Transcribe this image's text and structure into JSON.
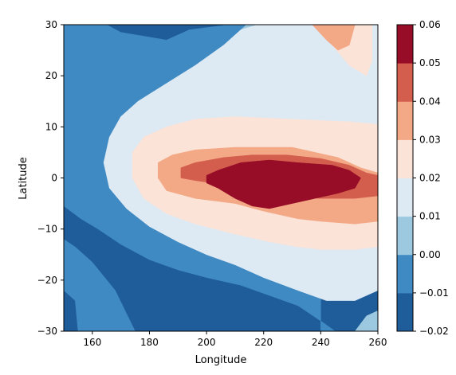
{
  "chart_data": {
    "type": "contourf",
    "title": "",
    "xlabel": "Longitude",
    "ylabel": "Latitude",
    "xlim": [
      150,
      260
    ],
    "ylim": [
      -30,
      30
    ],
    "xticks": [
      160,
      180,
      200,
      220,
      240,
      260
    ],
    "yticks": [
      -30,
      -20,
      -10,
      0,
      10,
      20,
      30
    ],
    "colorbar": {
      "levels": [
        -0.02,
        -0.01,
        0.0,
        0.01,
        0.02,
        0.03,
        0.04,
        0.05,
        0.06
      ],
      "tick_labels": [
        "−0.02",
        "−0.01",
        "0.00",
        "0.01",
        "0.02",
        "0.03",
        "0.04",
        "0.05",
        "0.06"
      ],
      "colors": [
        "#1f5c9a",
        "#3f8ac3",
        "#9cc8e0",
        "#dde9f3",
        "#fbe3d8",
        "#f4a986",
        "#d45e4e",
        "#970c27"
      ]
    },
    "contour_bands": [
      {
        "range": [
          -0.02,
          -0.01
        ],
        "color": "#1f5c9a",
        "regions": [
          [
            [
              186,
              30
            ],
            [
              194,
              29
            ],
            [
              208,
              30
            ],
            [
              165,
              30
            ],
            [
              170,
              28.5
            ]
          ],
          [
            [
              150,
              -5.5
            ],
            [
              156,
              -8
            ],
            [
              162,
              -10
            ],
            [
              170,
              -13
            ],
            [
              180,
              -16
            ],
            [
              190,
              -18
            ],
            [
              200,
              -19.5
            ],
            [
              212,
              -21
            ],
            [
              222,
              -23
            ],
            [
              232,
              -25
            ],
            [
              240,
              -28
            ],
            [
              245,
              -30
            ],
            [
              175,
              -30
            ],
            [
              168,
              -22
            ],
            [
              160,
              -16.5
            ],
            [
              154,
              -13.5
            ],
            [
              150,
              -12
            ]
          ],
          [
            [
              150,
              -22
            ],
            [
              154,
              -22
            ],
            [
              156,
              -27
            ],
            [
              155,
              -30
            ],
            [
              150,
              -30
            ]
          ]
        ]
      },
      {
        "range": [
          -0.01,
          0.0
        ],
        "color": "#3f8ac3",
        "regions": [
          [
            [
              150,
              30
            ],
            [
              155,
              30
            ],
            [
              156,
              28
            ],
            [
              156,
              22
            ],
            [
              152,
              20
            ],
            [
              150,
              21
            ]
          ],
          [
            [
              155,
              30
            ],
            [
              165,
              30
            ],
            [
              170,
              28.5
            ],
            [
              186,
              27
            ],
            [
              194,
              29
            ],
            [
              208,
              30
            ],
            [
              220,
              30
            ],
            [
              240,
              30
            ],
            [
              240,
              -30
            ],
            [
              245,
              -30
            ],
            [
              240,
              -28
            ],
            [
              232,
              -25
            ],
            [
              222,
              -23
            ],
            [
              212,
              -21
            ],
            [
              200,
              -19.5
            ],
            [
              190,
              -18
            ],
            [
              180,
              -16
            ],
            [
              170,
              -13
            ],
            [
              162,
              -10
            ],
            [
              156,
              -8
            ],
            [
              150,
              -5.5
            ],
            [
              150,
              21
            ],
            [
              152,
              20
            ],
            [
              156,
              22
            ],
            [
              156,
              28
            ]
          ],
          [
            [
              154,
              -24
            ],
            [
              158,
              -26
            ],
            [
              161,
              -30
            ],
            [
              155,
              -30
            ]
          ],
          [
            [
              150,
              -12
            ],
            [
              154,
              -13.5
            ],
            [
              160,
              -16.5
            ],
            [
              168,
              -22
            ],
            [
              175,
              -30
            ],
            [
              161,
              -30
            ],
            [
              158,
              -26
            ],
            [
              154,
              -24
            ],
            [
              150,
              -22
            ]
          ],
          [
            [
              245,
              -30
            ],
            [
              240,
              -30
            ],
            [
              240,
              -28
            ]
          ]
        ]
      },
      {
        "range": [
          0.0,
          0.01
        ],
        "color": "#9cc8e0",
        "regions": [
          [
            [
              218,
              30
            ],
            [
              222,
              28
            ],
            [
              224,
              24
            ],
            [
              234,
              21
            ],
            [
              244,
              16.5
            ],
            [
              256,
              14.5
            ],
            [
              260,
              14
            ],
            [
              260,
              -22
            ],
            [
              252,
              -24
            ],
            [
              242,
              -24
            ],
            [
              232,
              -22
            ],
            [
              220,
              -19.5
            ],
            [
              210,
              -17
            ],
            [
              200,
              -15
            ],
            [
              190,
              -12.5
            ],
            [
              180,
              -9.5
            ],
            [
              172,
              -6
            ],
            [
              166,
              -2
            ],
            [
              164,
              3
            ],
            [
              166,
              8
            ],
            [
              170,
              12
            ],
            [
              176,
              15
            ],
            [
              186,
              18.5
            ],
            [
              196,
              22
            ],
            [
              206,
              26
            ],
            [
              212,
              29
            ],
            [
              214,
              30
            ]
          ],
          [
            [
              260,
              -26
            ],
            [
              256,
              -27
            ],
            [
              252,
              -30
            ],
            [
              260,
              -30
            ]
          ]
        ]
      },
      {
        "range": [
          0.01,
          0.02
        ],
        "color": "#dde9f3",
        "regions": [
          [
            [
              228,
              30
            ],
            [
              236,
              30
            ],
            [
              260,
              30
            ],
            [
              260,
              -22
            ],
            [
              252,
              -24
            ],
            [
              242,
              -24
            ],
            [
              232,
              -22
            ],
            [
              220,
              -19.5
            ],
            [
              210,
              -17
            ],
            [
              200,
              -15
            ],
            [
              190,
              -12.5
            ],
            [
              180,
              -9.5
            ],
            [
              172,
              -6
            ],
            [
              166,
              -2
            ],
            [
              164,
              3
            ],
            [
              166,
              8
            ],
            [
              170,
              12
            ],
            [
              176,
              15
            ],
            [
              186,
              18.5
            ],
            [
              196,
              22
            ],
            [
              206,
              26
            ],
            [
              212,
              29
            ],
            [
              218,
              30
            ]
          ]
        ]
      },
      {
        "range": [
          0.02,
          0.03
        ],
        "color": "#fbe3d8",
        "regions": [
          [
            [
              250,
              30
            ],
            [
              258,
              30
            ],
            [
              258,
              23
            ],
            [
              256,
              20
            ],
            [
              250,
              22
            ],
            [
              244,
              26
            ]
          ],
          [
            [
              174,
              5
            ],
            [
              178,
              8
            ],
            [
              186,
              10
            ],
            [
              196,
              11.5
            ],
            [
              210,
              12
            ],
            [
              230,
              11.5
            ],
            [
              250,
              11
            ],
            [
              260,
              10.5
            ],
            [
              260,
              -13.5
            ],
            [
              252,
              -14
            ],
            [
              240,
              -14
            ],
            [
              232,
              -13.5
            ],
            [
              222,
              -12.5
            ],
            [
              210,
              -11
            ],
            [
              196,
              -9
            ],
            [
              186,
              -7
            ],
            [
              178,
              -4
            ],
            [
              174,
              0
            ]
          ]
        ]
      },
      {
        "range": [
          0.03,
          0.04
        ],
        "color": "#f4a986",
        "regions": [
          [
            [
              237,
              30
            ],
            [
              242,
              27
            ],
            [
              246,
              25
            ],
            [
              250,
              26
            ],
            [
              252,
              30
            ]
          ],
          [
            [
              183,
              3
            ],
            [
              188,
              4.5
            ],
            [
              196,
              5.5
            ],
            [
              210,
              6
            ],
            [
              230,
              6
            ],
            [
              246,
              4
            ],
            [
              254,
              2
            ],
            [
              260,
              1
            ],
            [
              260,
              -8.5
            ],
            [
              252,
              -9
            ],
            [
              240,
              -8.5
            ],
            [
              232,
              -8
            ],
            [
              220,
              -6.5
            ],
            [
              210,
              -5
            ],
            [
              196,
              -4
            ],
            [
              186,
              -2.5
            ],
            [
              183,
              0
            ]
          ]
        ]
      },
      {
        "range": [
          0.04,
          0.05
        ],
        "color": "#d45e4e",
        "regions": [
          [
            [
              191,
              2
            ],
            [
              196,
              3
            ],
            [
              206,
              4
            ],
            [
              216,
              4.5
            ],
            [
              228,
              4.5
            ],
            [
              240,
              3.8
            ],
            [
              250,
              2.5
            ],
            [
              256,
              1
            ],
            [
              260,
              0.5
            ],
            [
              260,
              -3.5
            ],
            [
              252,
              -4
            ],
            [
              240,
              -4
            ],
            [
              232,
              -3.8
            ],
            [
              220,
              -3.5
            ],
            [
              212,
              -2
            ],
            [
              202,
              -1
            ],
            [
              196,
              -0.5
            ],
            [
              191,
              0
            ]
          ]
        ]
      },
      {
        "range": [
          0.05,
          0.06
        ],
        "color": "#970c27",
        "regions": [
          [
            [
              200,
              0.5
            ],
            [
              204,
              1.5
            ],
            [
              212,
              3
            ],
            [
              222,
              3.5
            ],
            [
              232,
              3
            ],
            [
              244,
              2.5
            ],
            [
              250,
              1.5
            ],
            [
              254,
              0
            ],
            [
              252,
              -2
            ],
            [
              246,
              -3
            ],
            [
              238,
              -4
            ],
            [
              230,
              -5
            ],
            [
              222,
              -6
            ],
            [
              216,
              -5.5
            ],
            [
              210,
              -4
            ],
            [
              204,
              -2
            ],
            [
              200,
              -1
            ]
          ]
        ]
      }
    ]
  }
}
